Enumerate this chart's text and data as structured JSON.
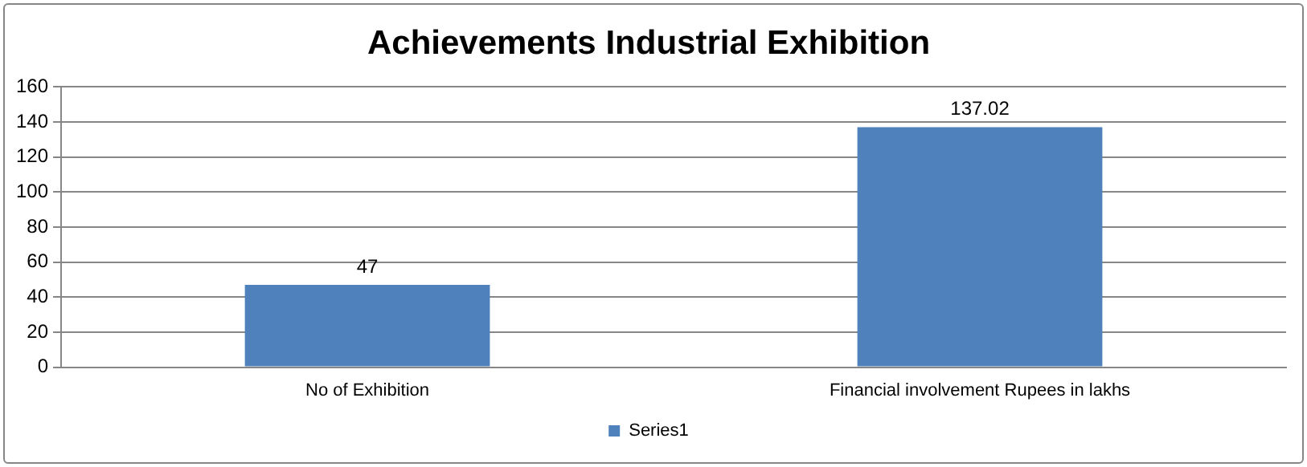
{
  "chart_data": {
    "type": "bar",
    "title": "Achievements Industrial Exhibition",
    "categories": [
      "No of Exhibition",
      "Financial involvement Rupees in lakhs"
    ],
    "series": [
      {
        "name": "Series1",
        "color": "#4f81bd",
        "values": [
          47,
          137.02
        ]
      }
    ],
    "ylim": [
      0,
      160
    ],
    "yticks": [
      0,
      20,
      40,
      60,
      80,
      100,
      120,
      140,
      160
    ],
    "grid": "y",
    "legend": "bottom",
    "data_labels": true
  }
}
